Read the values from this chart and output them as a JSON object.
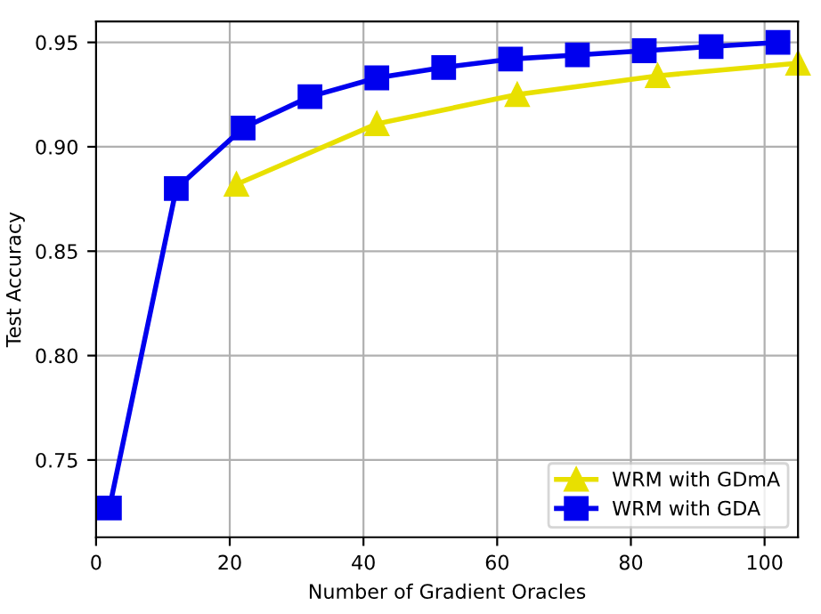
{
  "chart_data": {
    "type": "line",
    "xlabel": "Number of Gradient Oracles",
    "ylabel": "Test Accuracy",
    "xlim": [
      0,
      105
    ],
    "xticks": [
      0,
      20,
      40,
      60,
      80,
      100
    ],
    "ylim": [
      0.713,
      0.96
    ],
    "yticks": [
      0.75,
      {
        "value": 0.8,
        "label": "0.80"
      },
      0.85,
      {
        "value": 0.9,
        "label": "0.90"
      },
      0.95
    ],
    "grid": true,
    "legend": "bottom right",
    "series": [
      {
        "name": "WRM with GDmA",
        "color": "#e8e000",
        "marker": "triangle",
        "x": [
          21,
          42,
          63,
          84,
          105
        ],
        "values": [
          0.882,
          0.911,
          0.925,
          0.934,
          0.94
        ]
      },
      {
        "name": "WRM with GDA",
        "color": "#0000ee",
        "marker": "square",
        "x": [
          2,
          12,
          22,
          32,
          42,
          52,
          62,
          72,
          82,
          92,
          102
        ],
        "values": [
          0.727,
          0.88,
          0.909,
          0.924,
          0.933,
          0.938,
          0.942,
          0.944,
          0.946,
          0.948,
          0.95
        ]
      }
    ]
  }
}
